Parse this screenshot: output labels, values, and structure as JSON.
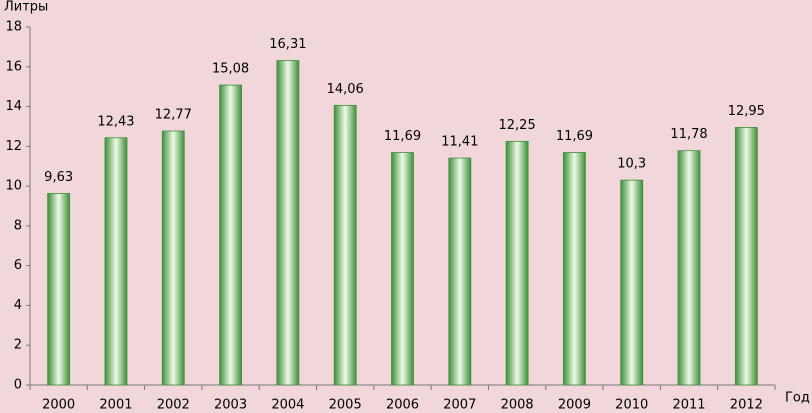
{
  "chart_data": {
    "type": "bar",
    "y_label": "Литры",
    "x_label": "Год",
    "categories": [
      "2000",
      "2001",
      "2002",
      "2003",
      "2004",
      "2005",
      "2006",
      "2007",
      "2008",
      "2009",
      "2010",
      "2011",
      "2012"
    ],
    "values": [
      9.63,
      12.43,
      12.77,
      15.08,
      16.31,
      14.06,
      11.69,
      11.41,
      12.25,
      11.69,
      10.3,
      11.78,
      12.95
    ],
    "value_labels": [
      "9,63",
      "12,43",
      "12,77",
      "15,08",
      "16,31",
      "14,06",
      "11,69",
      "11,41",
      "12,25",
      "11,69",
      "10,3",
      "11,78",
      "12,95"
    ],
    "color": "#3f8f3a",
    "ylim": [
      0,
      18
    ],
    "yticks": [
      0,
      2,
      4,
      6,
      8,
      10,
      12,
      14,
      16,
      18
    ],
    "grid": false
  }
}
